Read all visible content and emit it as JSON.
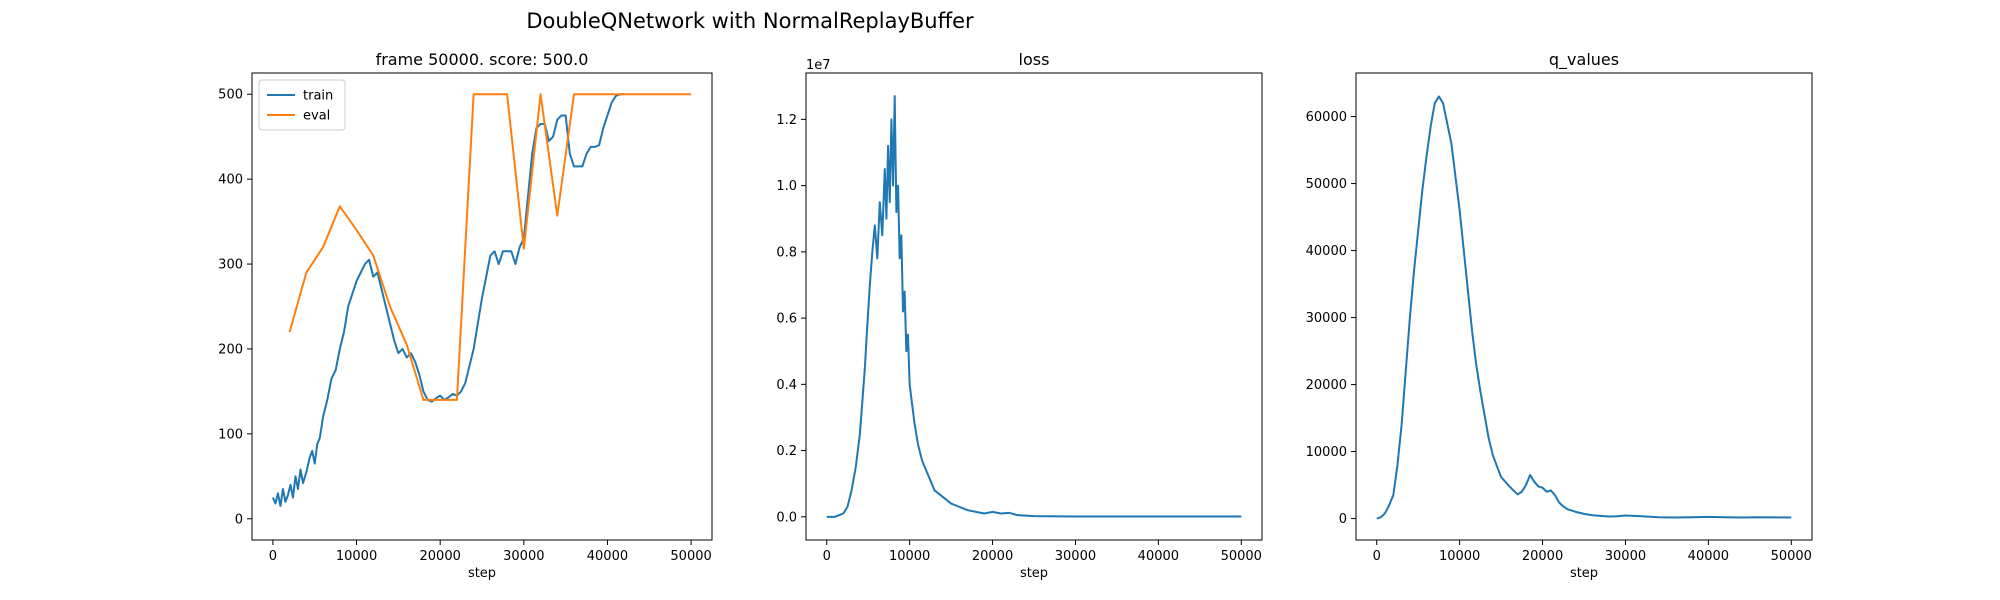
{
  "figure": {
    "suptitle": "DoubleQNetwork with NormalReplayBuffer"
  },
  "chart_data": [
    {
      "type": "line",
      "title": "frame 50000. score: 500.0",
      "xlabel": "step",
      "ylabel": "",
      "xlim": [
        -2500,
        52500
      ],
      "ylim": [
        -25,
        525
      ],
      "xticks": [
        0,
        10000,
        20000,
        30000,
        40000,
        50000
      ],
      "yticks": [
        0,
        100,
        200,
        300,
        400,
        500
      ],
      "legend": {
        "position": "top-left",
        "entries": [
          "train",
          "eval"
        ]
      },
      "grid": false,
      "series": [
        {
          "name": "train",
          "color": "#1f77b4",
          "x": [
            0,
            300,
            600,
            900,
            1200,
            1500,
            1800,
            2100,
            2400,
            2700,
            3000,
            3300,
            3600,
            4000,
            4400,
            4700,
            5000,
            5300,
            5600,
            6000,
            6500,
            7000,
            7500,
            8000,
            8500,
            9000,
            9500,
            10000,
            10500,
            11000,
            11500,
            12000,
            12500,
            13000,
            13500,
            14000,
            14500,
            15000,
            15500,
            16000,
            16500,
            17000,
            17500,
            18000,
            18500,
            19000,
            19500,
            20000,
            20500,
            21000,
            21500,
            22000,
            22500,
            23000,
            24000,
            25000,
            26000,
            26500,
            27000,
            27500,
            28000,
            28500,
            29000,
            29500,
            30000,
            30500,
            31000,
            31500,
            32000,
            32500,
            33000,
            33500,
            34000,
            34500,
            35000,
            35500,
            36000,
            36500,
            37000,
            37500,
            38000,
            38500,
            39000,
            39500,
            40000,
            40500,
            41000,
            41500,
            42000
          ],
          "y": [
            25,
            18,
            30,
            15,
            35,
            20,
            28,
            40,
            25,
            50,
            35,
            58,
            42,
            55,
            72,
            80,
            65,
            88,
            95,
            120,
            140,
            165,
            175,
            200,
            220,
            250,
            265,
            280,
            290,
            300,
            305,
            285,
            290,
            270,
            250,
            230,
            210,
            195,
            200,
            190,
            195,
            185,
            170,
            150,
            140,
            138,
            142,
            145,
            140,
            143,
            147,
            145,
            150,
            160,
            200,
            260,
            310,
            315,
            300,
            315,
            315,
            315,
            300,
            320,
            330,
            380,
            430,
            460,
            465,
            465,
            445,
            450,
            470,
            475,
            475,
            430,
            415,
            415,
            415,
            430,
            438,
            438,
            440,
            460,
            475,
            490,
            498,
            500,
            500
          ]
        },
        {
          "name": "eval",
          "color": "#ff7f0e",
          "x": [
            2000,
            4000,
            6000,
            8000,
            10000,
            12000,
            14000,
            16000,
            18000,
            20000,
            22000,
            24000,
            26000,
            28000,
            30000,
            32000,
            34000,
            36000,
            38000,
            40000,
            42000,
            44000,
            46000,
            48000,
            50000
          ],
          "y": [
            220,
            290,
            320,
            368,
            340,
            310,
            250,
            205,
            140,
            140,
            140,
            500,
            500,
            500,
            318,
            500,
            357,
            500,
            500,
            500,
            500,
            500,
            500,
            500,
            500
          ]
        }
      ]
    },
    {
      "type": "line",
      "title": "loss",
      "xlabel": "step",
      "ylabel": "",
      "offset_text": "1e7",
      "xlim": [
        -2500,
        52500
      ],
      "ylim": [
        -0.07,
        1.34
      ],
      "xticks": [
        0,
        10000,
        20000,
        30000,
        40000,
        50000
      ],
      "yticks": [
        0.0,
        0.2,
        0.4,
        0.6,
        0.8,
        1.0,
        1.2
      ],
      "ytick_labels": [
        "0.0",
        "0.2",
        "0.4",
        "0.6",
        "0.8",
        "1.0",
        "1.2"
      ],
      "grid": false,
      "series": [
        {
          "color": "#1f77b4",
          "x": [
            0,
            1000,
            2000,
            2500,
            3000,
            3500,
            4000,
            4300,
            4600,
            4900,
            5200,
            5500,
            5800,
            6100,
            6400,
            6700,
            7000,
            7200,
            7400,
            7600,
            7800,
            8000,
            8200,
            8400,
            8600,
            8800,
            9000,
            9200,
            9400,
            9600,
            9800,
            10000,
            10300,
            10600,
            11000,
            11500,
            12000,
            12500,
            13000,
            14000,
            15000,
            16000,
            17000,
            18000,
            19000,
            20000,
            21000,
            22000,
            23000,
            25000,
            30000,
            35000,
            40000,
            45000,
            50000
          ],
          "y": [
            0.0,
            0.0,
            0.01,
            0.03,
            0.08,
            0.15,
            0.25,
            0.35,
            0.45,
            0.58,
            0.7,
            0.8,
            0.88,
            0.78,
            0.95,
            0.85,
            1.05,
            0.9,
            1.12,
            0.95,
            1.2,
            1.0,
            1.27,
            0.92,
            1.0,
            0.78,
            0.85,
            0.62,
            0.68,
            0.5,
            0.55,
            0.4,
            0.34,
            0.28,
            0.22,
            0.17,
            0.14,
            0.11,
            0.08,
            0.06,
            0.04,
            0.03,
            0.02,
            0.015,
            0.01,
            0.015,
            0.01,
            0.012,
            0.005,
            0.002,
            0.001,
            0.001,
            0.001,
            0.001,
            0.001
          ]
        }
      ]
    },
    {
      "type": "line",
      "title": "q_values",
      "xlabel": "step",
      "ylabel": "",
      "xlim": [
        -2500,
        52500
      ],
      "ylim": [
        -3200,
        66500
      ],
      "xticks": [
        0,
        10000,
        20000,
        30000,
        40000,
        50000
      ],
      "yticks": [
        0,
        10000,
        20000,
        30000,
        40000,
        50000,
        60000
      ],
      "grid": false,
      "series": [
        {
          "color": "#1f77b4",
          "x": [
            0,
            500,
            1000,
            1500,
            2000,
            2500,
            3000,
            3500,
            4000,
            4500,
            5000,
            5500,
            6000,
            6500,
            7000,
            7500,
            8000,
            8500,
            9000,
            9500,
            10000,
            10500,
            11000,
            11500,
            12000,
            12500,
            13000,
            13500,
            14000,
            14500,
            15000,
            15500,
            16000,
            16500,
            17000,
            17500,
            18000,
            18500,
            19000,
            19500,
            20000,
            20500,
            21000,
            21500,
            22000,
            22500,
            23000,
            24000,
            25000,
            26000,
            27000,
            28000,
            29000,
            30000,
            32000,
            34000,
            36000,
            38000,
            40000,
            42000,
            44000,
            46000,
            48000,
            50000
          ],
          "y": [
            0,
            200,
            800,
            2000,
            3500,
            8000,
            14000,
            22000,
            30000,
            37000,
            43000,
            49000,
            54000,
            58500,
            62000,
            63000,
            62000,
            59000,
            56000,
            51000,
            46000,
            40000,
            34000,
            28000,
            23000,
            19000,
            15500,
            12000,
            9500,
            7800,
            6200,
            5500,
            4800,
            4200,
            3600,
            4000,
            5000,
            6500,
            5500,
            4800,
            4600,
            4000,
            4200,
            3500,
            2400,
            1800,
            1400,
            1000,
            700,
            500,
            400,
            300,
            350,
            450,
            350,
            200,
            150,
            200,
            250,
            200,
            150,
            200,
            180,
            150
          ]
        }
      ]
    }
  ]
}
